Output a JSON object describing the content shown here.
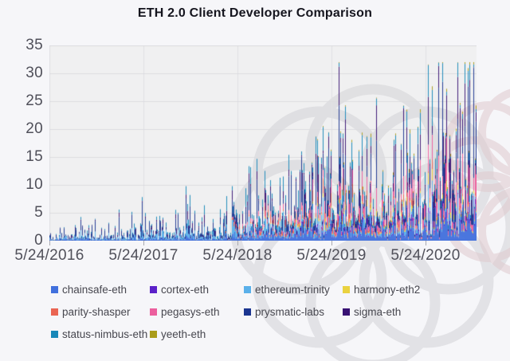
{
  "title": {
    "text": "ETH 2.0 Client Developer Comparison",
    "color": "#15151e"
  },
  "style": {
    "page_bg": "#f6f6f9",
    "plot_bg": "#f0f0f1",
    "grid_color": "#dcdcdf",
    "vgrid_color": "#e0e0e3",
    "axis_line_color": "#c0c0c4",
    "tick_color": "#a9a9af",
    "axis_text_color": "#50505a",
    "legend_text_color": "#47474f",
    "watermark_gray": "#cfcfd4",
    "watermark_pink": "#e0c9ce"
  },
  "chart_data": {
    "type": "bar",
    "stacked": true,
    "title": "ETH 2.0 Client Developer Comparison",
    "xlabel": "",
    "ylabel": "",
    "ylim": [
      0,
      35
    ],
    "grid": true,
    "legend_position": "bottom",
    "y_tick_labels": [
      "35",
      "30",
      "25",
      "20",
      "15",
      "10",
      "5",
      "0"
    ],
    "x_tick_labels": [
      "5/24/2016",
      "5/24/2017",
      "5/24/2018",
      "5/24/2019",
      "5/24/2020"
    ],
    "x_start_month": "2016-05",
    "x_span_months": 54.5,
    "peak_total_commits": 31,
    "note": "daily stacked commit counts per client team; monthly_avg arrays are estimated monthly mean stack heights (units) from 2016-05 through 2020-11",
    "series": [
      {
        "name": "chainsafe-eth",
        "color": "#4170dd",
        "profile": "steady",
        "monthly_avg": [
          0.25,
          0.25,
          0.25,
          0.25,
          0.25,
          0.25,
          0.3,
          0.3,
          0.3,
          0.3,
          0.3,
          0.3,
          0.4,
          0.4,
          0.4,
          0.4,
          0.45,
          0.45,
          0.5,
          0.5,
          0.55,
          0.55,
          0.6,
          0.6,
          0.9,
          1,
          1,
          1.1,
          1.1,
          1.2,
          1.2,
          1.3,
          1.3,
          1.4,
          1.4,
          1.5,
          1.6,
          1.6,
          1.7,
          1.7,
          1.8,
          1.8,
          1.9,
          2,
          2.1,
          2.2,
          2.4,
          2.6,
          3,
          3.2,
          3.4,
          3.6,
          3.8,
          4,
          4.2
        ]
      },
      {
        "name": "cortex-eth",
        "color": "#5b21c9",
        "profile": "medium",
        "monthly_avg": [
          0,
          0,
          0,
          0,
          0,
          0,
          0,
          0,
          0,
          0,
          0,
          0,
          0,
          0,
          0,
          0,
          0,
          0,
          0,
          0,
          0,
          0,
          0,
          0,
          0,
          0,
          0,
          0,
          0,
          0,
          0.1,
          0.1,
          0.15,
          0.15,
          0.2,
          0.2,
          0.25,
          0.25,
          0.3,
          0.3,
          0.3,
          0.3,
          0.3,
          0.3,
          0.3,
          0.35,
          0.35,
          0.35,
          0.4,
          0.4,
          0.4,
          0.4,
          0.45,
          0.45,
          0.45
        ]
      },
      {
        "name": "ethereum-trinity",
        "color": "#5ab0ea",
        "profile": "medium",
        "monthly_avg": [
          0.3,
          0.3,
          0.35,
          0.35,
          0.4,
          0.4,
          0.4,
          0.45,
          0.45,
          0.5,
          0.5,
          0.5,
          0.55,
          0.55,
          0.6,
          0.6,
          0.6,
          0.65,
          0.65,
          0.65,
          0.7,
          0.7,
          0.7,
          0.7,
          0.8,
          0.85,
          0.85,
          0.9,
          0.9,
          0.95,
          0.95,
          1,
          1,
          1.05,
          1.05,
          1.1,
          1.1,
          1.1,
          1.15,
          1.15,
          1.2,
          1.2,
          1.2,
          1.15,
          1.15,
          1.1,
          1.1,
          1,
          0.9,
          0.9,
          0.85,
          0.8,
          0.8,
          0.75,
          0.7
        ]
      },
      {
        "name": "harmony-eth2",
        "color": "#ead23f",
        "profile": "medium",
        "monthly_avg": [
          0,
          0,
          0,
          0,
          0,
          0,
          0,
          0,
          0,
          0,
          0,
          0,
          0,
          0,
          0,
          0,
          0,
          0,
          0,
          0,
          0,
          0,
          0,
          0,
          0,
          0,
          0.05,
          0.05,
          0.1,
          0.1,
          0.15,
          0.15,
          0.2,
          0.2,
          0.25,
          0.25,
          0.3,
          0.3,
          0.3,
          0.3,
          0.35,
          0.35,
          0.35,
          0.35,
          0.4,
          0.4,
          0.4,
          0.4,
          0.45,
          0.45,
          0.45,
          0.5,
          0.5,
          0.5,
          0.5
        ]
      },
      {
        "name": "parity-shasper",
        "color": "#ea6553",
        "profile": "medium",
        "monthly_avg": [
          0,
          0,
          0,
          0,
          0,
          0,
          0,
          0,
          0,
          0,
          0,
          0,
          0,
          0,
          0,
          0,
          0,
          0,
          0,
          0,
          0,
          0,
          0.1,
          0.15,
          0.3,
          0.35,
          0.4,
          0.45,
          0.5,
          0.55,
          0.6,
          0.6,
          0.65,
          0.65,
          0.7,
          0.7,
          0.8,
          0.8,
          0.85,
          0.85,
          0.8,
          0.75,
          0.7,
          0.65,
          0.6,
          0.55,
          0.5,
          0.45,
          0.4,
          0.35,
          0.3,
          0.3,
          0.25,
          0.25,
          0.2
        ]
      },
      {
        "name": "pegasys-eth",
        "color": "#ec5f9e",
        "profile": "steady",
        "monthly_avg": [
          0,
          0,
          0,
          0,
          0,
          0,
          0,
          0,
          0,
          0,
          0,
          0,
          0,
          0,
          0,
          0,
          0,
          0,
          0,
          0,
          0,
          0,
          0,
          0,
          0.3,
          0.35,
          0.4,
          0.45,
          0.5,
          0.55,
          0.6,
          0.65,
          0.7,
          0.75,
          0.8,
          0.9,
          1,
          1.1,
          1.2,
          1.3,
          1.4,
          1.5,
          1.6,
          1.7,
          1.8,
          1.9,
          2,
          2.2,
          2.4,
          2.6,
          2.8,
          3,
          3.2,
          3.2,
          3
        ]
      },
      {
        "name": "prysmatic-labs",
        "color": "#1b3590",
        "profile": "spiky",
        "monthly_avg": [
          0.5,
          0.5,
          0.55,
          0.55,
          0.5,
          0.5,
          0.55,
          0.55,
          0.6,
          0.6,
          0.6,
          0.6,
          0.7,
          0.7,
          0.75,
          0.75,
          0.8,
          0.8,
          0.85,
          0.85,
          0.9,
          0.9,
          0.95,
          1,
          1.1,
          1.2,
          1.3,
          1.4,
          1.5,
          1.5,
          1.6,
          1.6,
          1.7,
          1.7,
          1.8,
          1.9,
          2,
          2.1,
          2.2,
          2.3,
          2.4,
          2.5,
          2.5,
          2.6,
          2.7,
          2.8,
          2.9,
          3,
          3.4,
          3.6,
          3.8,
          4,
          4.2,
          4.4,
          4.4
        ]
      },
      {
        "name": "sigma-eth",
        "color": "#381173",
        "profile": "spiky",
        "monthly_avg": [
          0.1,
          0.1,
          0.1,
          0.1,
          0.1,
          0.1,
          0.1,
          0.1,
          0.15,
          0.15,
          0.15,
          0.15,
          0.2,
          0.2,
          0.2,
          0.2,
          0.25,
          0.25,
          0.25,
          0.3,
          0.3,
          0.3,
          0.35,
          0.4,
          0.5,
          0.55,
          0.6,
          0.65,
          0.7,
          0.75,
          0.8,
          0.85,
          0.9,
          0.95,
          1,
          1,
          1.1,
          1.15,
          1.2,
          1.25,
          1.3,
          1.35,
          1.4,
          1.45,
          1.5,
          1.55,
          1.6,
          1.6,
          2,
          2.2,
          2.4,
          2.5,
          2.6,
          2.7,
          2.7
        ]
      },
      {
        "name": "status-nimbus-eth",
        "color": "#1887b8",
        "profile": "medium",
        "monthly_avg": [
          0.1,
          0.1,
          0.1,
          0.1,
          0.15,
          0.15,
          0.15,
          0.15,
          0.2,
          0.2,
          0.2,
          0.2,
          0.3,
          0.3,
          0.35,
          0.35,
          0.4,
          0.45,
          0.5,
          0.55,
          0.6,
          0.6,
          0.65,
          0.7,
          0.8,
          0.85,
          0.85,
          0.9,
          0.9,
          0.95,
          0.95,
          1,
          1,
          1.05,
          1.05,
          1.1,
          1.1,
          1.15,
          1.15,
          1.2,
          1.2,
          1.25,
          1.25,
          1.3,
          1.3,
          1.3,
          1.3,
          1.3,
          1.3,
          1.4,
          1.4,
          1.5,
          1.5,
          1.5,
          1.5
        ]
      },
      {
        "name": "yeeth-eth",
        "color": "#aa9c1a",
        "profile": "medium",
        "monthly_avg": [
          0,
          0,
          0,
          0,
          0,
          0,
          0,
          0,
          0,
          0,
          0,
          0,
          0,
          0,
          0,
          0,
          0,
          0,
          0,
          0,
          0,
          0,
          0,
          0,
          0,
          0,
          0,
          0,
          0,
          0,
          0,
          0,
          0,
          0.05,
          0.05,
          0.1,
          0.15,
          0.15,
          0.2,
          0.2,
          0.2,
          0.2,
          0.2,
          0.2,
          0.2,
          0.2,
          0.2,
          0.2,
          0.2,
          0.2,
          0.2,
          0.2,
          0.2,
          0.2,
          0.2
        ]
      }
    ]
  }
}
